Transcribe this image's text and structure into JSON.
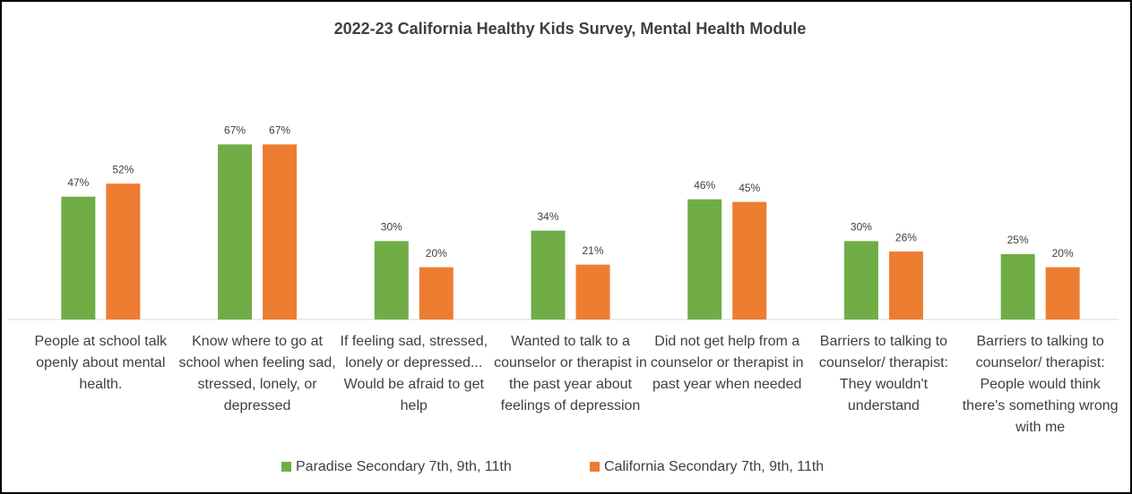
{
  "chart_data": {
    "type": "bar",
    "title": "2022-23 California Healthy Kids Survey, Mental Health Module",
    "categories": [
      "People at school talk openly about mental health.",
      "Know where to go at school when feeling sad, stressed, lonely, or depressed",
      "If feeling sad, stressed, lonely or depressed... Would be afraid to get help",
      "Wanted to talk to a counselor or therapist in the past year about feelings of depression",
      "Did not get help from a counselor or therapist in past year when needed",
      "Barriers to talking to counselor/ therapist: They wouldn't understand",
      "Barriers to talking to counselor/ therapist: People would think there's something wrong with me"
    ],
    "series": [
      {
        "name": "Paradise Secondary 7th, 9th, 11th",
        "color": "#70ad47",
        "values": [
          47,
          67,
          30,
          34,
          46,
          30,
          25
        ],
        "value_labels": [
          "47%",
          "67%",
          "30%",
          "34%",
          "46%",
          "30%",
          "25%"
        ]
      },
      {
        "name": "California Secondary 7th, 9th, 11th",
        "color": "#ed7d31",
        "values": [
          52,
          67,
          20,
          21,
          45,
          26,
          20
        ],
        "value_labels": [
          "52%",
          "67%",
          "20%",
          "21%",
          "45%",
          "26%",
          "20%"
        ]
      }
    ],
    "legend": "bottom"
  }
}
